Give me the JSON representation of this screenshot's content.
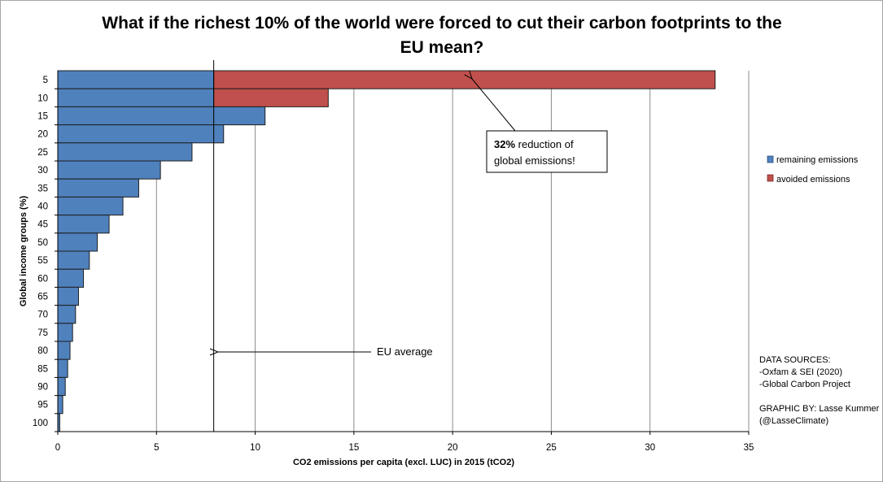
{
  "chart_data": {
    "type": "bar",
    "orientation": "horizontal",
    "stacked": true,
    "title_line1": "What if the richest 10% of the world were forced to cut their carbon footprints to the",
    "title_line2": "EU mean?",
    "xlabel": "CO2 emissions per capita  (excl. LUC) in 2015 (tCO2)",
    "ylabel": "Global income groups (%)",
    "xlim": [
      0,
      35
    ],
    "xticks": [
      "0",
      "5",
      "10",
      "15",
      "20",
      "25",
      "30",
      "35"
    ],
    "categories": [
      "5",
      "10",
      "15",
      "20",
      "25",
      "30",
      "35",
      "40",
      "45",
      "50",
      "55",
      "60",
      "65",
      "70",
      "75",
      "80",
      "85",
      "90",
      "95",
      "100"
    ],
    "grid": "vertical",
    "legend_position": "right",
    "series": [
      {
        "name": "remaining emissions",
        "color": "#4f81bd",
        "values": [
          7.9,
          7.9,
          10.5,
          8.4,
          6.8,
          5.2,
          4.1,
          3.3,
          2.6,
          2.0,
          1.6,
          1.3,
          1.05,
          0.9,
          0.75,
          0.62,
          0.5,
          0.38,
          0.25,
          0.1
        ]
      },
      {
        "name": "avoided emissions",
        "color": "#c0504d",
        "values": [
          25.4,
          5.8,
          0,
          0,
          0,
          0,
          0,
          0,
          0,
          0,
          0,
          0,
          0,
          0,
          0,
          0,
          0,
          0,
          0,
          0
        ]
      }
    ],
    "eu_average_value": 7.9,
    "eu_average_label": "EU average",
    "callout": {
      "bold": "32%",
      "line1_rest": " reduction of",
      "line2": "global emissions!"
    },
    "sources": {
      "line1": "DATA SOURCES:",
      "line2": "-Oxfam & SEI (2020)",
      "line3": "-Global Carbon Project",
      "line4": "GRAPHIC BY: Lasse Kummer",
      "line5": "(@LasseClimate)"
    }
  }
}
